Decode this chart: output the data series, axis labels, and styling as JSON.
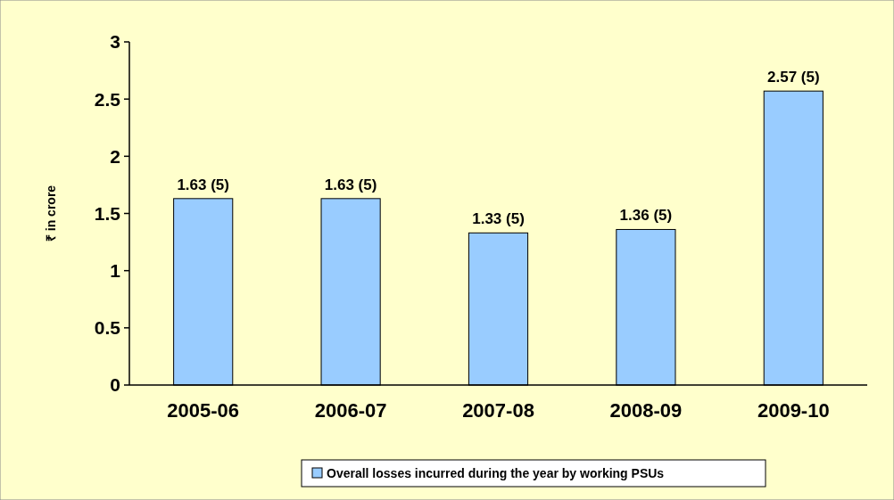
{
  "chart_data": {
    "type": "bar",
    "ylabel": "₹ in crore",
    "categories": [
      "2005-06",
      "2006-07",
      "2007-08",
      "2008-09",
      "2009-10"
    ],
    "series": [
      {
        "name": "Overall losses incurred during the year by working PSUs",
        "color": "#99ccff",
        "values": [
          1.63,
          1.63,
          1.33,
          1.36,
          2.57
        ],
        "value_labels": [
          "1.63 (5)",
          "1.63 (5)",
          "1.33 (5)",
          "1.36 (5)",
          "2.57 (5)"
        ]
      }
    ],
    "ylim": [
      0,
      3
    ],
    "yticks": [
      0,
      0.5,
      1,
      1.5,
      2,
      2.5,
      3
    ],
    "grid": false,
    "legend": "bottom"
  }
}
